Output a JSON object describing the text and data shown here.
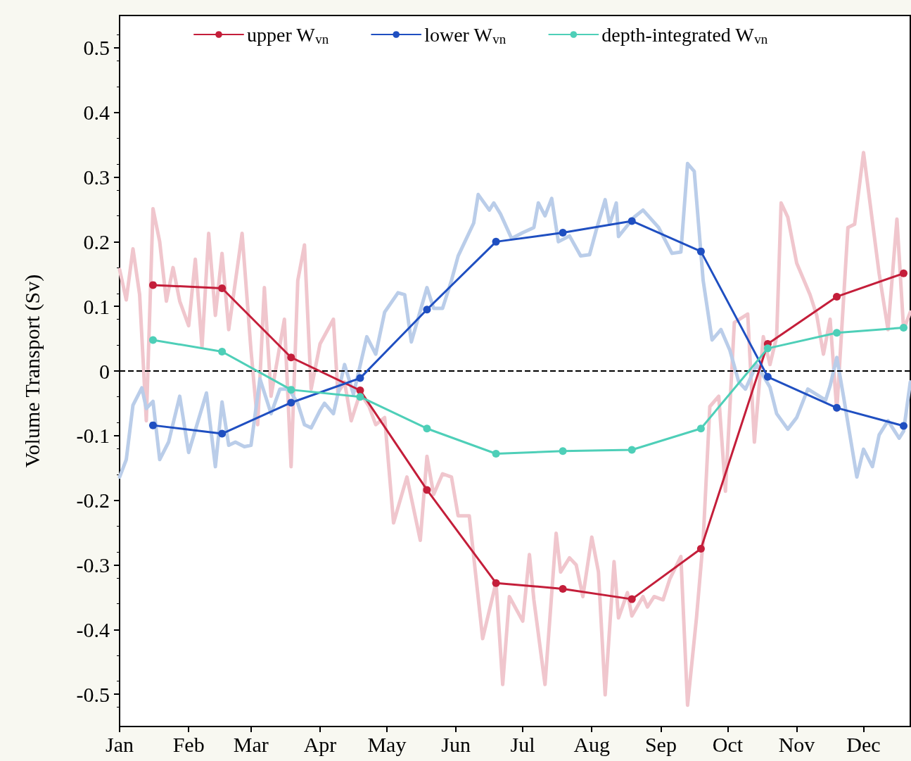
{
  "chart_data": {
    "type": "line",
    "ylabel": "Volume Transport (Sv)",
    "xlim": [
      "--01-01",
      "--12-22"
    ],
    "ylim": [
      -0.55,
      0.55
    ],
    "xticks": [
      {
        "value": "--01-01",
        "label": "Jan"
      },
      {
        "value": "--02-01",
        "label": "Feb"
      },
      {
        "value": "--03-01",
        "label": "Mar"
      },
      {
        "value": "--04-01",
        "label": "Apr"
      },
      {
        "value": "--05-01",
        "label": "May"
      },
      {
        "value": "--06-01",
        "label": "Jun"
      },
      {
        "value": "--07-01",
        "label": "Jul"
      },
      {
        "value": "--08-01",
        "label": "Aug"
      },
      {
        "value": "--09-01",
        "label": "Sep"
      },
      {
        "value": "--10-01",
        "label": "Oct"
      },
      {
        "value": "--11-01",
        "label": "Nov"
      },
      {
        "value": "--12-01",
        "label": "Dec"
      }
    ],
    "yticks": [
      -0.5,
      -0.4,
      -0.3,
      -0.2,
      -0.1,
      0,
      0.1,
      0.2,
      0.3,
      0.4,
      0.5
    ],
    "grid": false,
    "legend": "top",
    "marker": "circle",
    "line_style": "solid",
    "ref_lines": [
      {
        "axis": "y",
        "value": 0,
        "color": "#000000",
        "line_style": "dashed"
      }
    ],
    "series": [
      {
        "color": "#f0c6cd",
        "marker": "none",
        "x": [
          "--01-01",
          "--01-04",
          "--01-07",
          "--01-10",
          "--01-13",
          "--01-16",
          "--01-19",
          "--01-22",
          "--01-25",
          "--01-28",
          "--02-01",
          "--02-04",
          "--02-07",
          "--02-10",
          "--02-13",
          "--02-16",
          "--02-19",
          "--02-25",
          "--03-01",
          "--03-04",
          "--03-07",
          "--03-10",
          "--03-16",
          "--03-19",
          "--03-22",
          "--03-25",
          "--03-28",
          "--04-01",
          "--04-07",
          "--04-09",
          "--04-12",
          "--04-15",
          "--04-19",
          "--04-23",
          "--04-26",
          "--04-30",
          "--05-04",
          "--05-10",
          "--05-16",
          "--05-19",
          "--05-22",
          "--05-26",
          "--05-30",
          "--06-02",
          "--06-07",
          "--06-13",
          "--06-19",
          "--06-22",
          "--06-25",
          "--07-01",
          "--07-04",
          "--07-06",
          "--07-11",
          "--07-16",
          "--07-18",
          "--07-22",
          "--07-25",
          "--07-28",
          "--08-01",
          "--08-04",
          "--08-07",
          "--08-11",
          "--08-13",
          "--08-17",
          "--08-19",
          "--08-24",
          "--08-26",
          "--08-29",
          "--09-02",
          "--09-05",
          "--09-10",
          "--09-13",
          "--09-17",
          "--09-20",
          "--09-23",
          "--09-27",
          "--09-30",
          "--10-04",
          "--10-10",
          "--10-13",
          "--10-17",
          "--10-20",
          "--10-23",
          "--10-25",
          "--10-28",
          "--11-01",
          "--11-07",
          "--11-10",
          "--11-13",
          "--11-16",
          "--11-19",
          "--11-24",
          "--11-27",
          "--12-01",
          "--12-08",
          "--12-12",
          "--12-16",
          "--12-19",
          "--12-22"
        ],
        "values": [
          0.157,
          0.11,
          0.189,
          0.118,
          -0.077,
          0.251,
          0.2,
          0.108,
          0.16,
          0.108,
          0.07,
          0.173,
          0.037,
          0.213,
          0.086,
          0.182,
          0.064,
          0.213,
          0.032,
          -0.083,
          0.129,
          -0.039,
          0.08,
          -0.148,
          0.14,
          0.195,
          -0.028,
          0.042,
          0.08,
          -0.034,
          -0.017,
          -0.077,
          -0.034,
          -0.055,
          -0.083,
          -0.072,
          -0.235,
          -0.164,
          -0.262,
          -0.132,
          -0.191,
          -0.159,
          -0.164,
          -0.224,
          -0.224,
          -0.414,
          -0.327,
          -0.485,
          -0.349,
          -0.387,
          -0.284,
          -0.354,
          -0.485,
          -0.251,
          -0.311,
          -0.289,
          -0.3,
          -0.349,
          -0.257,
          -0.311,
          -0.501,
          -0.295,
          -0.382,
          -0.343,
          -0.379,
          -0.349,
          -0.365,
          -0.349,
          -0.354,
          -0.322,
          -0.287,
          -0.517,
          -0.382,
          -0.262,
          -0.055,
          -0.039,
          -0.186,
          0.075,
          0.088,
          -0.11,
          0.053,
          0.01,
          0.053,
          0.26,
          0.238,
          0.167,
          0.118,
          0.086,
          0.026,
          0.08,
          -0.061,
          0.222,
          0.227,
          0.338,
          0.151,
          0.064,
          0.235,
          0.064,
          0.091
        ]
      },
      {
        "color": "#bacde9",
        "marker": "none",
        "x": [
          "--01-01",
          "--01-04",
          "--01-07",
          "--01-11",
          "--01-13",
          "--01-16",
          "--01-19",
          "--01-23",
          "--01-28",
          "--02-01",
          "--02-09",
          "--02-13",
          "--02-16",
          "--02-19",
          "--02-22",
          "--02-26",
          "--03-01",
          "--03-05",
          "--03-10",
          "--03-14",
          "--03-18",
          "--03-22",
          "--03-25",
          "--03-28",
          "--04-01",
          "--04-03",
          "--04-07",
          "--04-12",
          "--04-16",
          "--04-22",
          "--04-26",
          "--04-30",
          "--05-06",
          "--05-09",
          "--05-12",
          "--05-19",
          "--05-22",
          "--05-26",
          "--05-30",
          "--06-02",
          "--06-09",
          "--06-11",
          "--06-16",
          "--06-18",
          "--06-21",
          "--06-26",
          "--07-01",
          "--07-06",
          "--07-08",
          "--07-11",
          "--07-14",
          "--07-17",
          "--07-22",
          "--07-27",
          "--07-31",
          "--08-03",
          "--08-07",
          "--08-09",
          "--08-12",
          "--08-13",
          "--08-20",
          "--08-24",
          "--08-31",
          "--09-06",
          "--09-10",
          "--09-13",
          "--09-16",
          "--09-20",
          "--09-24",
          "--09-28",
          "--10-02",
          "--10-06",
          "--10-09",
          "--10-14",
          "--10-20",
          "--10-23",
          "--10-28",
          "--11-01",
          "--11-06",
          "--11-14",
          "--11-16",
          "--11-19",
          "--11-22",
          "--11-28",
          "--12-01",
          "--12-05",
          "--12-08",
          "--12-12",
          "--12-17",
          "--12-19",
          "--12-22"
        ],
        "values": [
          -0.164,
          -0.137,
          -0.053,
          -0.026,
          -0.058,
          -0.047,
          -0.137,
          -0.11,
          -0.039,
          -0.126,
          -0.034,
          -0.148,
          -0.048,
          -0.115,
          -0.11,
          -0.117,
          -0.115,
          -0.012,
          -0.066,
          -0.028,
          -0.028,
          -0.05,
          -0.083,
          -0.088,
          -0.061,
          -0.05,
          -0.066,
          0.01,
          -0.036,
          0.053,
          0.026,
          0.091,
          0.121,
          0.118,
          0.045,
          0.129,
          0.097,
          0.097,
          0.14,
          0.178,
          0.229,
          0.273,
          0.249,
          0.26,
          0.243,
          0.205,
          0.214,
          0.222,
          0.26,
          0.24,
          0.267,
          0.2,
          0.209,
          0.178,
          0.18,
          0.218,
          0.265,
          0.227,
          0.26,
          0.208,
          0.238,
          0.249,
          0.222,
          0.182,
          0.184,
          0.321,
          0.309,
          0.14,
          0.048,
          0.064,
          0.032,
          -0.017,
          -0.028,
          0.01,
          -0.025,
          -0.066,
          -0.09,
          -0.072,
          -0.028,
          -0.045,
          -0.023,
          0.021,
          -0.039,
          -0.164,
          -0.121,
          -0.148,
          -0.099,
          -0.077,
          -0.104,
          -0.093,
          -0.017
        ]
      },
      {
        "name": "upper W$_{vn}$",
        "color": "#c41e3a",
        "x": [
          "--01-16",
          "--02-16",
          "--03-19",
          "--04-19",
          "--05-19",
          "--06-19",
          "--07-19",
          "--08-19",
          "--09-19",
          "--10-19",
          "--11-19",
          "--12-19"
        ],
        "values": [
          0.133,
          0.128,
          0.021,
          -0.03,
          -0.184,
          -0.328,
          -0.337,
          -0.353,
          -0.275,
          0.042,
          0.115,
          0.151
        ]
      },
      {
        "name": "lower W$_{vn}$",
        "color": "#1f4fc1",
        "x": [
          "--01-16",
          "--02-16",
          "--03-19",
          "--04-19",
          "--05-19",
          "--06-19",
          "--07-19",
          "--08-19",
          "--09-19",
          "--10-19",
          "--11-19",
          "--12-19"
        ],
        "values": [
          -0.084,
          -0.097,
          -0.049,
          -0.011,
          0.095,
          0.2,
          0.214,
          0.232,
          0.185,
          -0.009,
          -0.057,
          -0.085
        ]
      },
      {
        "name": "depth-integrated W$_{vn}$",
        "color": "#4ecfb8",
        "x": [
          "--01-16",
          "--02-16",
          "--03-19",
          "--04-19",
          "--05-19",
          "--06-19",
          "--07-19",
          "--08-19",
          "--09-19",
          "--10-19",
          "--11-19",
          "--12-19"
        ],
        "values": [
          0.048,
          0.03,
          -0.029,
          -0.04,
          -0.089,
          -0.128,
          -0.124,
          -0.122,
          -0.089,
          0.035,
          0.059,
          0.067
        ]
      }
    ]
  }
}
